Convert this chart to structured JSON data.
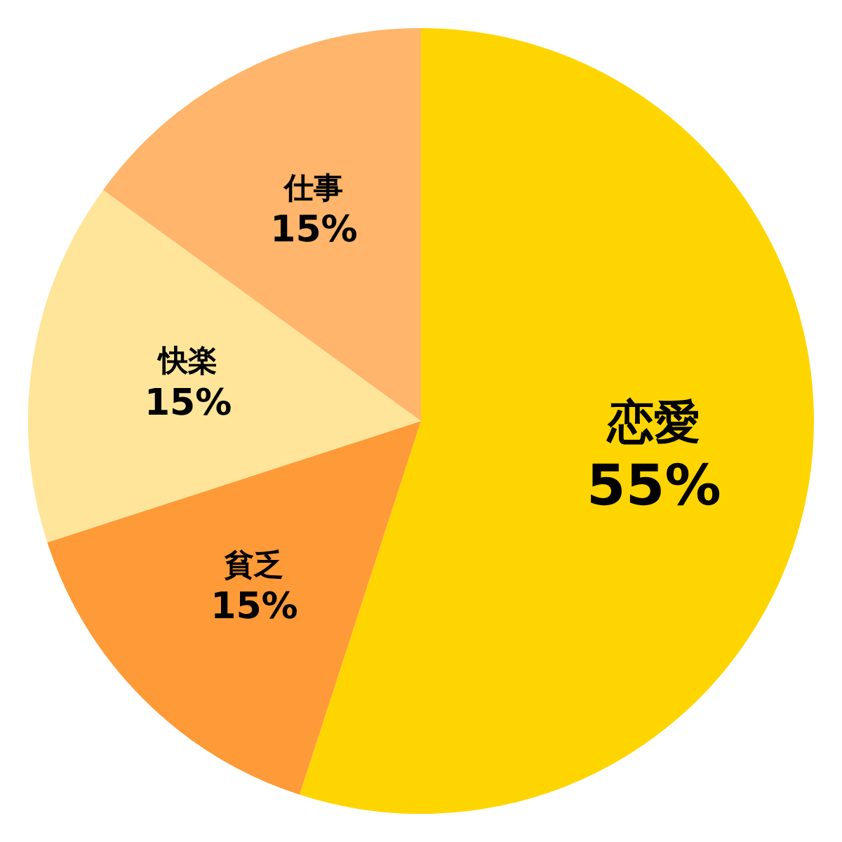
{
  "chart_data": {
    "type": "pie",
    "categories": [
      "恋愛",
      "貧乏",
      "快楽",
      "仕事"
    ],
    "values": [
      55,
      15,
      15,
      15
    ],
    "value_labels": [
      "55%",
      "15%",
      "15%",
      "15%"
    ],
    "colors": [
      "#ffd500",
      "#ff9a38",
      "#ffe599",
      "#ffb56b"
    ],
    "legend": false
  }
}
